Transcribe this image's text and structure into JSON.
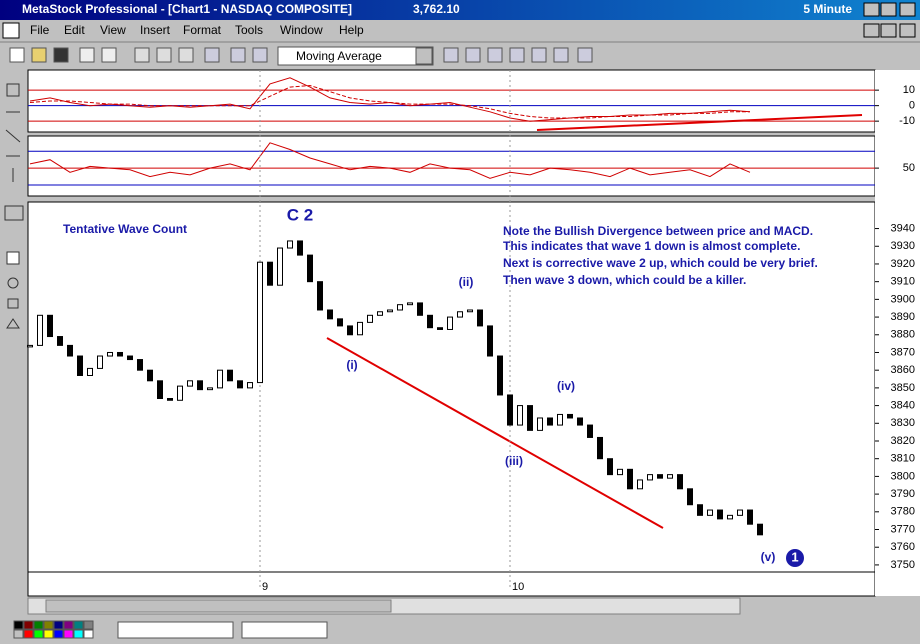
{
  "window": {
    "title": "MetaStock Professional - [Chart1 - NASDAQ  COMPOSITE]",
    "value": "3,762.10",
    "interval": "5 Minute"
  },
  "menu": [
    "File",
    "Edit",
    "View",
    "Insert",
    "Format",
    "Tools",
    "Window",
    "Help"
  ],
  "toolbar": {
    "indicator": "Moving Average"
  },
  "chart_data": [
    {
      "type": "line",
      "x": [
        0,
        2,
        4,
        6,
        8,
        10,
        12,
        14,
        16,
        18,
        20,
        22,
        24,
        26,
        28,
        30,
        32,
        34,
        36,
        38,
        40,
        42,
        44,
        46,
        48,
        50,
        52,
        54,
        56,
        58,
        60,
        62,
        64,
        66,
        68,
        70,
        72
      ],
      "xlim": [
        -0.2,
        84.5
      ],
      "ylim": [
        -17,
        23
      ],
      "yticks": [
        10,
        0,
        -10
      ],
      "series": [
        {
          "color": "#d00000",
          "values": [
            3,
            5,
            2,
            0,
            1,
            0,
            -1,
            0,
            -1,
            0,
            1,
            -2,
            14,
            18,
            12,
            5,
            2,
            1,
            2,
            0,
            1,
            2,
            -1,
            -4,
            -8,
            -10,
            -9,
            -8,
            -7,
            -7,
            -6,
            -6,
            -5,
            -5,
            -4,
            -3,
            -4
          ]
        },
        {
          "color": "#d00000",
          "dashed": true,
          "values": [
            2,
            3,
            3,
            2,
            1,
            1,
            0,
            0,
            0,
            0,
            0,
            0,
            6,
            12,
            13,
            9,
            5,
            3,
            2,
            1,
            1,
            1,
            0,
            -2,
            -5,
            -7,
            -8,
            -8,
            -8,
            -7,
            -7,
            -6,
            -6,
            -5,
            -5,
            -4,
            -4
          ]
        }
      ]
    },
    {
      "type": "line",
      "x": [
        0,
        2,
        4,
        6,
        8,
        10,
        12,
        14,
        16,
        18,
        20,
        22,
        24,
        26,
        28,
        30,
        32,
        34,
        36,
        38,
        40,
        42,
        44,
        46,
        48,
        50,
        52,
        54,
        56,
        58,
        60,
        62,
        64,
        66,
        68,
        70,
        72
      ],
      "xlim": [
        -0.2,
        84.5
      ],
      "ylim": [
        17,
        88
      ],
      "yticks": [
        50
      ],
      "levels": [
        30,
        70
      ],
      "series": [
        {
          "color": "#d00000",
          "values": [
            55,
            60,
            45,
            52,
            50,
            48,
            40,
            45,
            42,
            50,
            55,
            48,
            80,
            72,
            62,
            55,
            48,
            52,
            50,
            45,
            55,
            50,
            48,
            38,
            45,
            42,
            50,
            48,
            45,
            40,
            50,
            42,
            45,
            48,
            40,
            55,
            45
          ]
        }
      ]
    },
    {
      "type": "candlestick",
      "x": [
        0,
        1,
        2,
        3,
        4,
        5,
        6,
        7,
        8,
        9,
        10,
        11,
        12,
        13,
        14,
        15,
        16,
        17,
        18,
        19,
        20,
        21,
        22,
        23,
        24,
        25,
        26,
        27,
        28,
        29,
        30,
        31,
        32,
        33,
        34,
        35,
        36,
        37,
        38,
        39,
        40,
        41,
        42,
        43,
        44,
        45,
        46,
        47,
        48,
        49,
        50,
        51,
        52,
        53,
        54,
        55,
        56,
        57,
        58,
        59,
        60,
        61,
        62,
        63,
        64,
        65,
        66,
        67,
        68,
        69,
        70,
        71,
        72,
        73
      ],
      "values": [
        3874,
        3891,
        3879,
        3874,
        3868,
        3857,
        3861,
        3868,
        3870,
        3868,
        3866,
        3860,
        3854,
        3844,
        3843,
        3851,
        3854,
        3849,
        3850,
        3860,
        3854,
        3850,
        3853,
        3921,
        3908,
        3929,
        3933,
        3925,
        3910,
        3894,
        3889,
        3885,
        3880,
        3887,
        3891,
        3893,
        3894,
        3897,
        3898,
        3891,
        3884,
        3883,
        3890,
        3893,
        3894,
        3885,
        3868,
        3846,
        3829,
        3840,
        3826,
        3833,
        3829,
        3835,
        3833,
        3829,
        3822,
        3810,
        3801,
        3804,
        3793,
        3798,
        3801,
        3799,
        3801,
        3793,
        3784,
        3778,
        3781,
        3776,
        3778,
        3781,
        3773,
        3767
      ],
      "xlim": [
        -0.2,
        84.5
      ],
      "ylim": [
        3746,
        3955
      ],
      "xticks": [
        {
          "value": 23,
          "label": "9"
        },
        {
          "value": 48,
          "label": "10"
        }
      ],
      "yticks": [
        3940,
        3930,
        3920,
        3910,
        3900,
        3890,
        3880,
        3870,
        3860,
        3850,
        3840,
        3830,
        3820,
        3810,
        3800,
        3790,
        3780,
        3770,
        3760,
        3750
      ],
      "annotations": [
        "Tentative Wave Count",
        "C 2",
        "(i)",
        "(ii)",
        "(iii)",
        "(iv)",
        "(v)",
        "1",
        "Note the Bullish Divergence between price and MACD.",
        "This indicates that wave 1 down is almost complete.",
        "Next is corrective wave 2 up, which could be very brief.",
        "Then wave 3 down, which could be a killer."
      ]
    }
  ]
}
